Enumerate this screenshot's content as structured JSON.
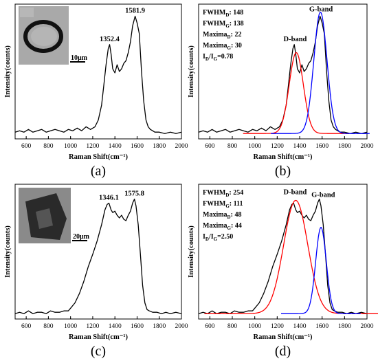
{
  "chart_data": [
    {
      "id": "a",
      "type": "line",
      "panel_label": "(a)",
      "xlabel": "Raman Shift(cm⁻¹)",
      "ylabel": "Intensity(counts)",
      "xlim": [
        500,
        2000
      ],
      "xticks": [
        600,
        800,
        1000,
        1200,
        1400,
        1600,
        1800,
        2000
      ],
      "ylim": [
        0,
        1
      ],
      "series": [
        {
          "color": "#000000",
          "x": [
            500,
            540,
            580,
            620,
            660,
            700,
            740,
            780,
            820,
            860,
            900,
            940,
            980,
            1020,
            1060,
            1100,
            1140,
            1180,
            1220,
            1250,
            1280,
            1300,
            1320,
            1340,
            1352,
            1365,
            1380,
            1400,
            1420,
            1440,
            1460,
            1480,
            1500,
            1520,
            1540,
            1560,
            1582,
            1600,
            1620,
            1640,
            1660,
            1680,
            1700,
            1720,
            1740,
            1760,
            1800,
            1850,
            1900,
            1950,
            2000
          ],
          "y": [
            0.05,
            0.06,
            0.05,
            0.07,
            0.05,
            0.06,
            0.07,
            0.05,
            0.06,
            0.07,
            0.06,
            0.05,
            0.07,
            0.06,
            0.08,
            0.06,
            0.09,
            0.07,
            0.09,
            0.14,
            0.25,
            0.4,
            0.55,
            0.67,
            0.7,
            0.63,
            0.52,
            0.49,
            0.55,
            0.5,
            0.52,
            0.56,
            0.58,
            0.64,
            0.72,
            0.84,
            0.91,
            0.86,
            0.78,
            0.5,
            0.28,
            0.14,
            0.09,
            0.07,
            0.06,
            0.05,
            0.05,
            0.04,
            0.05,
            0.04,
            0.05
          ]
        }
      ],
      "annotations": [
        {
          "text": "1352.4",
          "x": 1352,
          "y": 0.7
        },
        {
          "text": "1581.9",
          "x": 1582,
          "y": 0.91
        }
      ],
      "inset": {
        "scale_text": "10μm"
      }
    },
    {
      "id": "b",
      "type": "line",
      "panel_label": "(b)",
      "xlabel": "Raman Shift(cm⁻¹)",
      "ylabel": "Intensity(counts)",
      "xlim": [
        500,
        2000
      ],
      "xticks": [
        600,
        800,
        1000,
        1200,
        1400,
        1600,
        1800,
        2000
      ],
      "ylim": [
        0,
        1
      ],
      "stats": [
        {
          "label": "FWHM",
          "sub": "D",
          "value": ":  148"
        },
        {
          "label": "FWHM",
          "sub": "G",
          "value": ":  138"
        },
        {
          "label": "Maxima",
          "sub": "D",
          "value": ":  22"
        },
        {
          "label": "Maxima",
          "sub": "G",
          "value": ":  30"
        }
      ],
      "ratio": {
        "l1": "I",
        "s1": "D",
        "mid": "/I",
        "s2": "G",
        "value": "=0.78"
      },
      "band_labels": [
        {
          "text": "D-band",
          "x": 1360,
          "y": 0.7
        },
        {
          "text": "G-band",
          "x": 1590,
          "y": 0.92
        }
      ],
      "series": [
        {
          "color": "#000000",
          "x": [
            500,
            540,
            580,
            620,
            660,
            700,
            740,
            780,
            820,
            860,
            900,
            940,
            980,
            1020,
            1060,
            1100,
            1140,
            1180,
            1220,
            1250,
            1280,
            1300,
            1320,
            1340,
            1352,
            1365,
            1380,
            1400,
            1420,
            1440,
            1460,
            1480,
            1500,
            1520,
            1540,
            1560,
            1582,
            1600,
            1620,
            1640,
            1660,
            1680,
            1700,
            1720,
            1740,
            1760,
            1800,
            1850,
            1900,
            1950,
            2000
          ],
          "y": [
            0.05,
            0.06,
            0.05,
            0.07,
            0.05,
            0.06,
            0.07,
            0.05,
            0.06,
            0.07,
            0.06,
            0.05,
            0.07,
            0.06,
            0.08,
            0.06,
            0.09,
            0.07,
            0.09,
            0.14,
            0.25,
            0.4,
            0.55,
            0.67,
            0.7,
            0.63,
            0.52,
            0.49,
            0.55,
            0.5,
            0.52,
            0.56,
            0.58,
            0.64,
            0.72,
            0.84,
            0.91,
            0.86,
            0.78,
            0.5,
            0.28,
            0.14,
            0.09,
            0.07,
            0.06,
            0.05,
            0.05,
            0.04,
            0.05,
            0.04,
            0.05
          ]
        },
        {
          "color": "#ff0000",
          "gauss": {
            "center": 1370,
            "fwhm": 148,
            "amp": 0.6,
            "base": 0.04
          }
        },
        {
          "color": "#0000ff",
          "gauss": {
            "center": 1585,
            "fwhm": 138,
            "amp": 0.9,
            "base": 0.04
          }
        }
      ]
    },
    {
      "id": "c",
      "type": "line",
      "panel_label": "(c)",
      "xlabel": "Raman Shift(cm⁻¹)",
      "ylabel": "Intensity(counts)",
      "xlim": [
        500,
        2000
      ],
      "xticks": [
        600,
        800,
        1000,
        1200,
        1400,
        1600,
        1800,
        2000
      ],
      "ylim": [
        0,
        1
      ],
      "series": [
        {
          "color": "#000000",
          "x": [
            500,
            540,
            580,
            620,
            660,
            700,
            740,
            780,
            820,
            860,
            900,
            940,
            980,
            1000,
            1040,
            1080,
            1120,
            1160,
            1200,
            1240,
            1280,
            1310,
            1330,
            1346,
            1365,
            1380,
            1400,
            1420,
            1440,
            1460,
            1480,
            1500,
            1520,
            1540,
            1560,
            1576,
            1590,
            1610,
            1630,
            1650,
            1670,
            1690,
            1710,
            1740,
            1780,
            1820,
            1860,
            1900,
            1950,
            2000
          ],
          "y": [
            0.04,
            0.05,
            0.04,
            0.06,
            0.04,
            0.05,
            0.05,
            0.04,
            0.06,
            0.05,
            0.05,
            0.06,
            0.06,
            0.08,
            0.12,
            0.19,
            0.28,
            0.39,
            0.48,
            0.58,
            0.7,
            0.81,
            0.85,
            0.86,
            0.81,
            0.79,
            0.8,
            0.77,
            0.75,
            0.77,
            0.74,
            0.73,
            0.77,
            0.8,
            0.86,
            0.89,
            0.84,
            0.7,
            0.48,
            0.25,
            0.12,
            0.07,
            0.06,
            0.05,
            0.05,
            0.04,
            0.05,
            0.04,
            0.05,
            0.04
          ]
        }
      ],
      "annotations": [
        {
          "text": "1346.1",
          "x": 1346,
          "y": 0.86
        },
        {
          "text": "1575.8",
          "x": 1576,
          "y": 0.89
        }
      ],
      "inset": {
        "scale_text": "20μm"
      }
    },
    {
      "id": "d",
      "type": "line",
      "panel_label": "(d)",
      "xlabel": "Raman Shift(cm⁻¹)",
      "ylabel": "Intensity(counts)",
      "xlim": [
        500,
        2000
      ],
      "xticks": [
        600,
        800,
        1000,
        1200,
        1400,
        1600,
        1800,
        2000
      ],
      "ylim": [
        0,
        1
      ],
      "stats": [
        {
          "label": "FWHM",
          "sub": "D",
          "value": ":  254"
        },
        {
          "label": "FWHM",
          "sub": "G",
          "value": ":  111"
        },
        {
          "label": "Maxima",
          "sub": "D",
          "value": ":  48"
        },
        {
          "label": "Maxima",
          "sub": "G",
          "value": ":  44"
        }
      ],
      "ratio": {
        "l1": "I",
        "s1": "D",
        "mid": "/I",
        "s2": "G",
        "value": "=2.50"
      },
      "band_labels": [
        {
          "text": "D-band",
          "x": 1360,
          "y": 0.9
        },
        {
          "text": "G-band",
          "x": 1610,
          "y": 0.88
        }
      ],
      "series": [
        {
          "color": "#000000",
          "x": [
            500,
            540,
            580,
            620,
            660,
            700,
            740,
            780,
            820,
            860,
            900,
            940,
            980,
            1000,
            1040,
            1080,
            1120,
            1160,
            1200,
            1240,
            1280,
            1310,
            1330,
            1346,
            1365,
            1380,
            1400,
            1420,
            1440,
            1460,
            1480,
            1500,
            1520,
            1540,
            1560,
            1576,
            1590,
            1610,
            1630,
            1650,
            1670,
            1690,
            1710,
            1740,
            1780,
            1820,
            1860,
            1900,
            1950,
            2000
          ],
          "y": [
            0.04,
            0.05,
            0.04,
            0.06,
            0.04,
            0.05,
            0.05,
            0.04,
            0.06,
            0.05,
            0.05,
            0.06,
            0.06,
            0.08,
            0.12,
            0.19,
            0.28,
            0.39,
            0.48,
            0.58,
            0.7,
            0.81,
            0.85,
            0.86,
            0.81,
            0.79,
            0.8,
            0.77,
            0.75,
            0.77,
            0.74,
            0.73,
            0.77,
            0.8,
            0.86,
            0.89,
            0.84,
            0.7,
            0.48,
            0.25,
            0.12,
            0.07,
            0.06,
            0.05,
            0.05,
            0.04,
            0.05,
            0.04,
            0.05,
            0.04
          ]
        },
        {
          "color": "#ff0000",
          "gauss": {
            "center": 1365,
            "fwhm": 254,
            "amp": 0.84,
            "base": 0.04
          }
        },
        {
          "color": "#0000ff",
          "gauss": {
            "center": 1590,
            "fwhm": 111,
            "amp": 0.64,
            "base": 0.04
          }
        }
      ]
    }
  ]
}
